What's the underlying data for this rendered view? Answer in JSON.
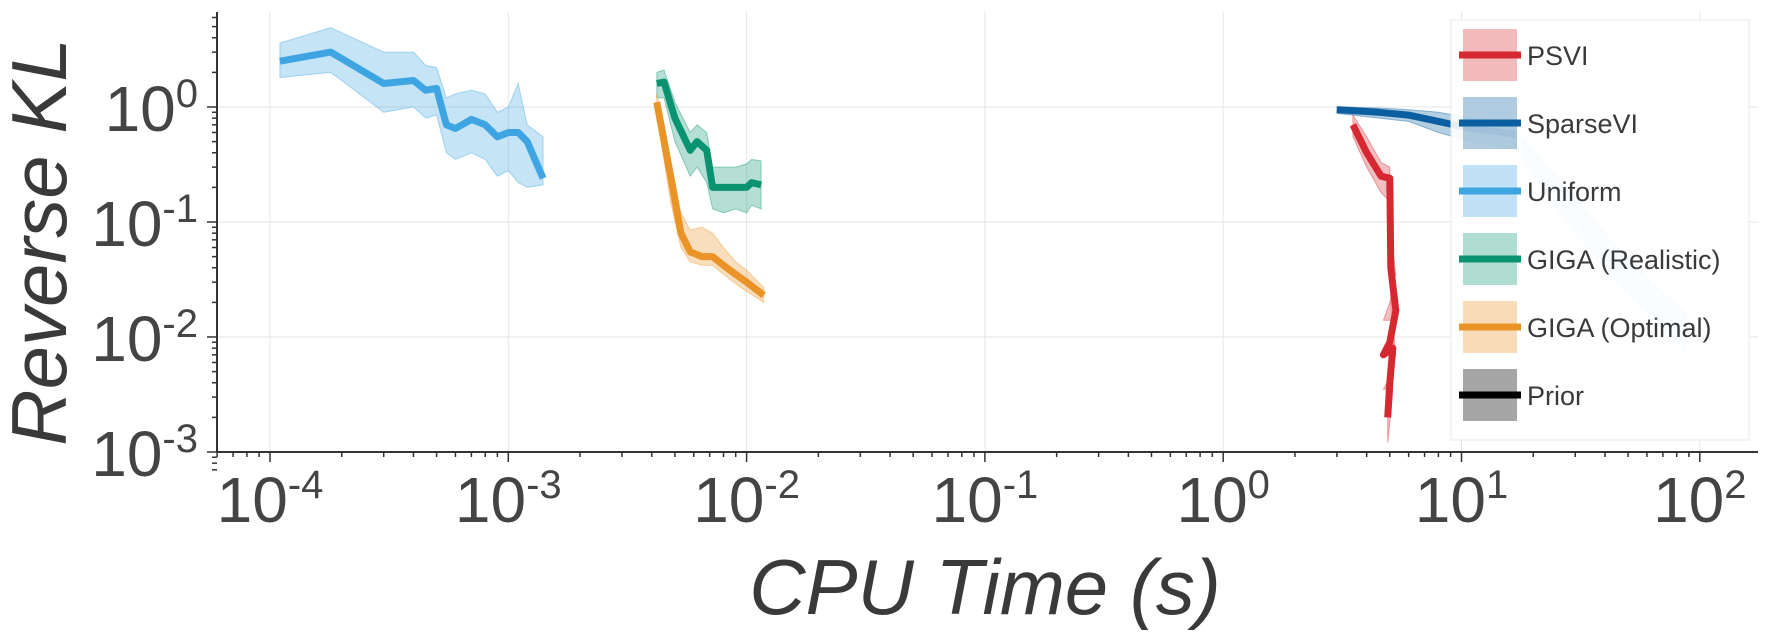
{
  "chart_data": {
    "type": "line",
    "title": "",
    "xlabel": "CPU Time (s)",
    "ylabel": "Reverse KL",
    "xscale": "log",
    "yscale": "log",
    "xlim": [
      6e-05,
      170
    ],
    "ylim": [
      0.0007,
      6.5
    ],
    "x_ticks": [
      {
        "value": 0.0001,
        "base": "10",
        "exp": "-4"
      },
      {
        "value": 0.001,
        "base": "10",
        "exp": "-3"
      },
      {
        "value": 0.01,
        "base": "10",
        "exp": "-2"
      },
      {
        "value": 0.1,
        "base": "10",
        "exp": "-1"
      },
      {
        "value": 1,
        "base": "10",
        "exp": "0"
      },
      {
        "value": 10,
        "base": "10",
        "exp": "1"
      },
      {
        "value": 100,
        "base": "10",
        "exp": "2"
      }
    ],
    "y_ticks": [
      {
        "value": 0.001,
        "base": "10",
        "exp": "-3"
      },
      {
        "value": 0.01,
        "base": "10",
        "exp": "-2"
      },
      {
        "value": 0.1,
        "base": "10",
        "exp": "-1"
      },
      {
        "value": 1,
        "base": "10",
        "exp": "0"
      }
    ],
    "grid": true,
    "legend_position": "top-right",
    "series": [
      {
        "name": "PSVI",
        "color": "#d62830",
        "x": [
          3.5,
          4.0,
          4.6,
          5.0,
          5.05,
          5.3,
          5.0,
          4.7,
          5.15,
          5.0,
          4.9
        ],
        "y": [
          0.7,
          0.4,
          0.25,
          0.24,
          0.04,
          0.017,
          0.009,
          0.007,
          0.008,
          0.004,
          0.002
        ],
        "lower": [
          0.55,
          0.3,
          0.18,
          0.15,
          0.02,
          0.007,
          0.0045,
          0.0035,
          0.0035,
          0.0018,
          0.0012
        ],
        "upper": [
          0.85,
          0.55,
          0.33,
          0.3,
          0.08,
          0.035,
          0.02,
          0.014,
          0.014,
          0.008,
          0.004
        ]
      },
      {
        "name": "SparseVI",
        "color": "#0b5fa0",
        "x": [
          3.0,
          4.5,
          6.0,
          8.0,
          11.0,
          15.0,
          17.0
        ],
        "y": [
          0.95,
          0.9,
          0.85,
          0.75,
          0.65,
          0.6,
          0.58
        ],
        "lower": [
          0.88,
          0.8,
          0.75,
          0.6,
          0.5,
          0.45,
          0.43
        ],
        "upper": [
          1.0,
          0.98,
          0.95,
          0.9,
          0.8,
          0.75,
          0.72
        ]
      },
      {
        "name": "Uniform",
        "color": "#3fa5e2",
        "x": [
          0.00011,
          0.00018,
          0.0003,
          0.0004,
          0.00045,
          0.0005,
          0.00055,
          0.0006,
          0.0007,
          0.0008,
          0.0009,
          0.001,
          0.0011,
          0.0012,
          0.0014
        ],
        "y": [
          2.5,
          3.0,
          1.6,
          1.7,
          1.4,
          1.45,
          0.7,
          0.65,
          0.78,
          0.7,
          0.55,
          0.6,
          0.6,
          0.5,
          0.24
        ],
        "lower": [
          1.8,
          2.0,
          0.9,
          1.0,
          0.8,
          0.85,
          0.4,
          0.35,
          0.4,
          0.35,
          0.25,
          0.28,
          0.22,
          0.2,
          0.21
        ],
        "upper": [
          3.6,
          4.9,
          3.0,
          3.0,
          2.3,
          2.2,
          1.2,
          1.3,
          1.4,
          1.3,
          0.9,
          1.0,
          1.6,
          0.7,
          0.55
        ]
      },
      {
        "name": "GIGA (Realistic)",
        "color": "#0a9370",
        "x": [
          0.0042,
          0.0045,
          0.005,
          0.0058,
          0.0062,
          0.0068,
          0.0072,
          0.008,
          0.009,
          0.01,
          0.0105,
          0.0115
        ],
        "y": [
          1.6,
          1.65,
          0.8,
          0.42,
          0.5,
          0.42,
          0.2,
          0.2,
          0.2,
          0.2,
          0.22,
          0.21
        ],
        "lower": [
          1.2,
          1.2,
          0.5,
          0.25,
          0.3,
          0.22,
          0.13,
          0.12,
          0.13,
          0.12,
          0.14,
          0.13
        ],
        "upper": [
          2.0,
          2.1,
          1.1,
          0.6,
          0.7,
          0.6,
          0.3,
          0.3,
          0.3,
          0.32,
          0.35,
          0.34
        ]
      },
      {
        "name": "GIGA (Optimal)",
        "color": "#ea9327",
        "x": [
          0.0042,
          0.0048,
          0.0053,
          0.0058,
          0.0065,
          0.0072,
          0.008,
          0.009,
          0.01,
          0.0118
        ],
        "y": [
          1.1,
          0.25,
          0.08,
          0.055,
          0.05,
          0.05,
          0.042,
          0.035,
          0.03,
          0.023
        ],
        "lower": [
          0.85,
          0.15,
          0.06,
          0.045,
          0.042,
          0.042,
          0.035,
          0.029,
          0.025,
          0.02
        ],
        "upper": [
          1.3,
          0.35,
          0.12,
          0.085,
          0.09,
          0.08,
          0.06,
          0.045,
          0.038,
          0.027
        ]
      },
      {
        "name": "Prior",
        "color": "#000000",
        "x": [],
        "y": [],
        "lower": [],
        "upper": []
      }
    ],
    "extra_bands": [
      {
        "series": "Uniform",
        "x": [
          18.0,
          30.0,
          45.0,
          65.0,
          88.0
        ],
        "lower": [
          0.35,
          0.08,
          0.03,
          0.014,
          0.007
        ],
        "upper": [
          0.55,
          0.16,
          0.06,
          0.028,
          0.016
        ]
      }
    ]
  }
}
